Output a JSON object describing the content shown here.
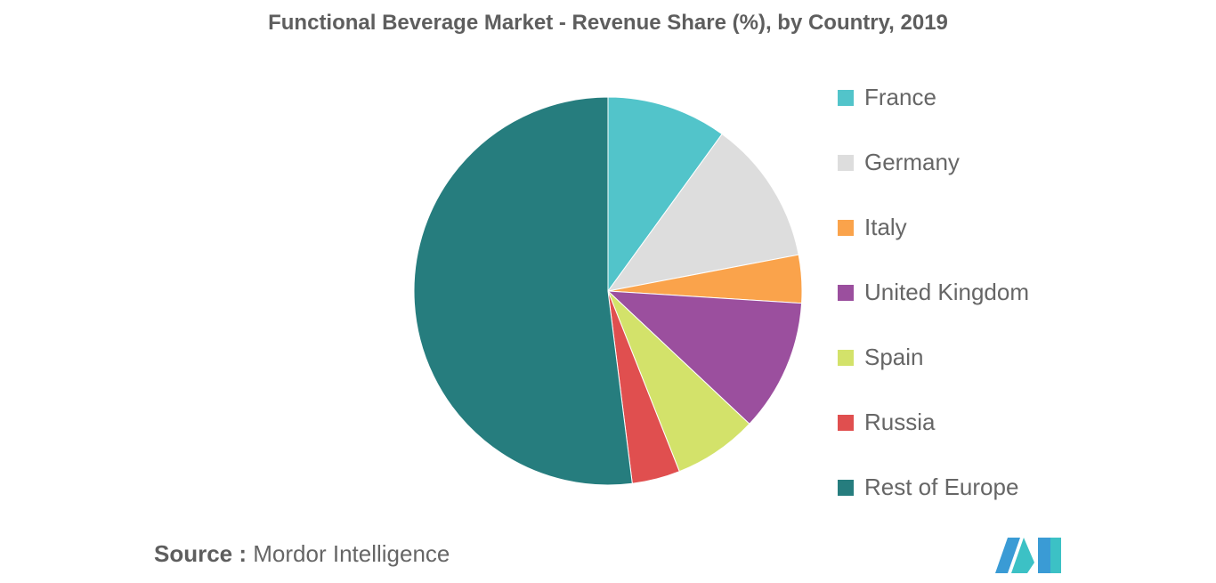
{
  "chart_data": {
    "type": "pie",
    "title": "Functional Beverage Market - Revenue Share (%), by Country, 2019",
    "slices": [
      {
        "label": "France",
        "value": 10,
        "color": "#52C4CA"
      },
      {
        "label": "Germany",
        "value": 12,
        "color": "#DDDDDD"
      },
      {
        "label": "Italy",
        "value": 4,
        "color": "#FAA34B"
      },
      {
        "label": "United Kingdom",
        "value": 11,
        "color": "#9B4F9E"
      },
      {
        "label": "Spain",
        "value": 7,
        "color": "#D3E26A"
      },
      {
        "label": "Russia",
        "value": 4,
        "color": "#E04F4F"
      },
      {
        "label": "Rest of Europe",
        "value": 52,
        "color": "#267D7E"
      }
    ],
    "legend_position": "right"
  },
  "source": {
    "prefix": "Source :",
    "text": "Mordor Intelligence"
  },
  "logo": {
    "icon": "mordor-intelligence-logo-icon",
    "colors": [
      "#3A9BD5",
      "#3CC1C5"
    ]
  }
}
